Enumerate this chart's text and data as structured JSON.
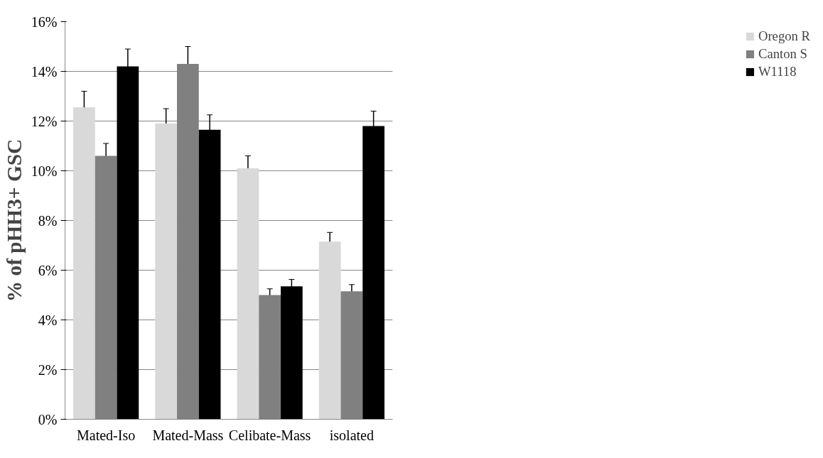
{
  "chart_data": {
    "type": "bar",
    "ylabel": "% of pHH3+ GSC",
    "categories": [
      "Mated-Iso",
      "Mated-Mass",
      "Celibate-Mass",
      "isolated"
    ],
    "series": [
      {
        "name": "Oregon R",
        "color": "#d9d9d9",
        "values": [
          12.55,
          11.9,
          10.1,
          7.15
        ],
        "errors": [
          0.65,
          0.6,
          0.5,
          0.37
        ]
      },
      {
        "name": "Canton S",
        "color": "#808080",
        "values": [
          10.6,
          14.3,
          5.0,
          5.15
        ],
        "errors": [
          0.5,
          0.7,
          0.25,
          0.27
        ]
      },
      {
        "name": "W1118",
        "color": "#000000",
        "values": [
          14.2,
          11.65,
          5.35,
          11.8
        ],
        "errors": [
          0.7,
          0.6,
          0.28,
          0.6
        ]
      }
    ],
    "ylim": [
      0,
      16
    ],
    "yticks": [
      {
        "value": 0,
        "label": "0%"
      },
      {
        "value": 2,
        "label": "2%"
      },
      {
        "value": 4,
        "label": "4%"
      },
      {
        "value": 6,
        "label": "6%"
      },
      {
        "value": 8,
        "label": "8%"
      },
      {
        "value": 10,
        "label": "10%"
      },
      {
        "value": 12,
        "label": "12%"
      },
      {
        "value": 14,
        "label": "14%"
      },
      {
        "value": 16,
        "label": "16%"
      }
    ],
    "grid": "y",
    "legend": "right"
  }
}
